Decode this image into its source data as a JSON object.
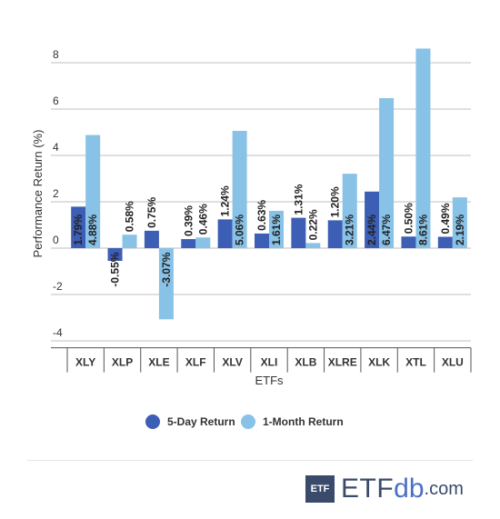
{
  "chart_data": {
    "type": "bar",
    "xlabel": "ETFs",
    "ylabel": "Performance Return (%)",
    "ylim": [
      -4.3,
      8.3
    ],
    "yticks": [
      -4,
      -2,
      0,
      2,
      4,
      6,
      8
    ],
    "categories": [
      "XLY",
      "XLP",
      "XLE",
      "XLF",
      "XLV",
      "XLI",
      "XLB",
      "XLRE",
      "XLK",
      "XTL",
      "XLU"
    ],
    "series": [
      {
        "name": "5-Day Return",
        "color": "#3d5eb5",
        "values": [
          1.79,
          -0.55,
          0.75,
          0.39,
          1.24,
          0.63,
          1.31,
          1.2,
          2.44,
          0.5,
          0.49
        ],
        "labels": [
          "1.79%",
          "-0.55%",
          "0.75%",
          "0.39%",
          "1.24%",
          "0.63%",
          "1.31%",
          "1.20%",
          "2.44%",
          "0.50%",
          "0.49%"
        ]
      },
      {
        "name": "1-Month Return",
        "color": "#88c2e6",
        "values": [
          4.88,
          0.58,
          -3.07,
          0.46,
          5.06,
          1.61,
          0.22,
          3.21,
          6.47,
          8.61,
          2.19
        ],
        "labels": [
          "4.88%",
          "0.58%",
          "-3.07%",
          "0.46%",
          "5.06%",
          "1.61%",
          "0.22%",
          "3.21%",
          "6.47%",
          "8.61%",
          "2.19%"
        ]
      }
    ],
    "grid": true,
    "legend_position": "bottom"
  },
  "logo": {
    "box": "ETF",
    "etf": "ETF",
    "db": "db",
    "com": ".com"
  }
}
